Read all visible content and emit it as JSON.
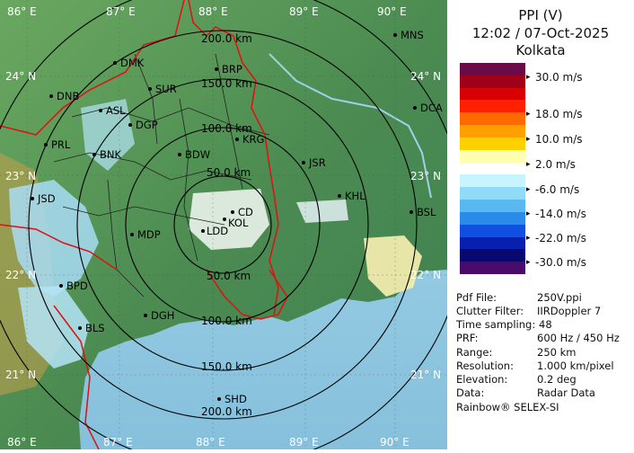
{
  "header": {
    "product": "PPI (V)",
    "datetime": "12:02 / 07-Oct-2025",
    "station": "Kolkata"
  },
  "legend": {
    "unit": "m/s",
    "labels": [
      "30.0 m/s",
      "18.0 m/s",
      "10.0 m/s",
      "2.0 m/s",
      "-6.0 m/s",
      "-14.0 m/s",
      "-22.0 m/s",
      "-30.0 m/s"
    ],
    "colors": [
      "#6a0a4a",
      "#a00018",
      "#d80000",
      "#ff2000",
      "#ff6a00",
      "#ffa000",
      "#ffd000",
      "#ffffb0",
      "#ffffff",
      "#c8f4ff",
      "#90dcf8",
      "#5ab8f0",
      "#2a8ce8",
      "#1050e0",
      "#0820b0",
      "#080870",
      "#4a0a6a"
    ]
  },
  "map": {
    "lon_labels": [
      "86° E",
      "87° E",
      "88° E",
      "89° E",
      "90° E"
    ],
    "lat_labels": [
      "24° N",
      "23° N",
      "22° N",
      "21° N"
    ],
    "range_rings": [
      "50.0 km",
      "100.0 km",
      "150.0 km",
      "200.0 km"
    ],
    "range_labels_upper": [
      "200.0 km",
      "150.0 km",
      "100.0 km",
      "50.0 km"
    ],
    "range_labels_lower": [
      "50.0 km",
      "100.0 km",
      "150.0 km",
      "200.0 km"
    ],
    "cities": [
      "MNS",
      "DMK",
      "BRP",
      "DNB",
      "SUR",
      "ASL",
      "DGP",
      "DCA",
      "PRL",
      "BNK",
      "KRG",
      "BDW",
      "JSR",
      "KHL",
      "JSD",
      "CD",
      "KOL",
      "BSL",
      "MDP",
      "LDD",
      "BPD",
      "DGH",
      "BLS",
      "SHD"
    ],
    "colors": {
      "land": "#4e8e54",
      "sea": "#9ed0e6",
      "ring": "#000000",
      "border": "#e01010",
      "district": "#222222"
    }
  },
  "info": {
    "rows": [
      {
        "key": "Pdf File:",
        "value": "250V.ppi"
      },
      {
        "key": "Clutter Filter:",
        "value": "IIRDoppler 7"
      },
      {
        "key": "Time sampling:",
        "value": "48"
      },
      {
        "key": "PRF:",
        "value": "600 Hz / 450 Hz"
      },
      {
        "key": "Range:",
        "value": "250 km"
      },
      {
        "key": "Resolution:",
        "value": "1.000 km/pixel"
      },
      {
        "key": "Elevation:",
        "value": "0.2 deg"
      },
      {
        "key": "Data:",
        "value": "Radar Data"
      }
    ],
    "brand": "Rainbow® SELEX-SI"
  }
}
